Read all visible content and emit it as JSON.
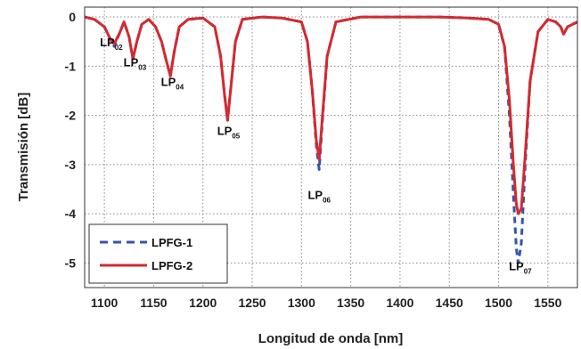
{
  "chart_data": {
    "type": "line",
    "xlabel": "Longitud de onda [nm]",
    "ylabel": "Transmisión [dB]",
    "xlim": [
      1080,
      1580
    ],
    "ylim": [
      -5.5,
      0.2
    ],
    "xticks": [
      1100,
      1150,
      1200,
      1250,
      1300,
      1350,
      1400,
      1450,
      1500,
      1550
    ],
    "yticks": [
      0,
      -1,
      -2,
      -3,
      -4,
      -5
    ],
    "grid": true,
    "legend_position": "bottom-left",
    "series": [
      {
        "name": "LPFG-1",
        "style": "dashed",
        "color": "#3355aa",
        "x": [
          1080,
          1090,
          1100,
          1106,
          1110,
          1116,
          1120,
          1125,
          1129,
          1133,
          1138,
          1145,
          1152,
          1158,
          1163,
          1167,
          1171,
          1176,
          1185,
          1200,
          1212,
          1218,
          1222,
          1225,
          1228,
          1233,
          1240,
          1260,
          1280,
          1300,
          1306,
          1311,
          1315,
          1318,
          1321,
          1326,
          1335,
          1360,
          1400,
          1440,
          1470,
          1490,
          1500,
          1506,
          1511,
          1515,
          1518,
          1520,
          1523,
          1527,
          1532,
          1540,
          1550,
          1558,
          1563,
          1566,
          1570,
          1580
        ],
        "y": [
          0.0,
          -0.05,
          -0.2,
          -0.45,
          -0.6,
          -0.3,
          -0.1,
          -0.4,
          -0.85,
          -0.5,
          -0.15,
          -0.05,
          -0.2,
          -0.5,
          -0.9,
          -1.2,
          -0.7,
          -0.2,
          -0.05,
          -0.02,
          -0.2,
          -0.8,
          -1.6,
          -2.1,
          -1.5,
          -0.5,
          -0.05,
          0.0,
          -0.02,
          -0.1,
          -0.5,
          -1.5,
          -2.6,
          -3.1,
          -2.2,
          -0.8,
          -0.1,
          0.0,
          0.0,
          0.0,
          -0.02,
          -0.05,
          -0.15,
          -0.6,
          -2.0,
          -3.6,
          -4.7,
          -5.0,
          -4.6,
          -3.0,
          -1.3,
          -0.3,
          -0.05,
          -0.1,
          -0.2,
          -0.35,
          -0.2,
          -0.1
        ]
      },
      {
        "name": "LPFG-2",
        "style": "solid",
        "color": "#d42a2f",
        "x": [
          1080,
          1090,
          1100,
          1106,
          1110,
          1116,
          1120,
          1125,
          1129,
          1133,
          1138,
          1145,
          1152,
          1158,
          1163,
          1167,
          1171,
          1176,
          1185,
          1200,
          1212,
          1218,
          1222,
          1225,
          1228,
          1233,
          1240,
          1260,
          1280,
          1300,
          1306,
          1311,
          1315,
          1318,
          1321,
          1326,
          1335,
          1360,
          1400,
          1440,
          1470,
          1490,
          1500,
          1506,
          1511,
          1515,
          1518,
          1520,
          1523,
          1527,
          1532,
          1540,
          1550,
          1558,
          1563,
          1566,
          1570,
          1580
        ],
        "y": [
          0.0,
          -0.05,
          -0.2,
          -0.45,
          -0.55,
          -0.3,
          -0.1,
          -0.4,
          -0.85,
          -0.5,
          -0.15,
          -0.05,
          -0.2,
          -0.5,
          -0.9,
          -1.2,
          -0.7,
          -0.2,
          -0.05,
          -0.02,
          -0.2,
          -0.8,
          -1.6,
          -2.1,
          -1.5,
          -0.5,
          -0.05,
          0.0,
          -0.02,
          -0.1,
          -0.5,
          -1.5,
          -2.5,
          -2.9,
          -2.1,
          -0.8,
          -0.1,
          0.0,
          0.0,
          0.0,
          -0.02,
          -0.05,
          -0.15,
          -0.6,
          -1.7,
          -3.0,
          -3.8,
          -4.0,
          -3.9,
          -2.8,
          -1.3,
          -0.3,
          -0.05,
          -0.1,
          -0.2,
          -0.35,
          -0.2,
          -0.1
        ]
      }
    ],
    "annotations": [
      {
        "main": "LP",
        "sub": "02",
        "x": 1107,
        "y": -0.6
      },
      {
        "main": "LP",
        "sub": "03",
        "x": 1131,
        "y": -1.0
      },
      {
        "main": "LP",
        "sub": "04",
        "x": 1169,
        "y": -1.4
      },
      {
        "main": "LP",
        "sub": "05",
        "x": 1226,
        "y": -2.4
      },
      {
        "main": "LP",
        "sub": "06",
        "x": 1318,
        "y": -3.7
      },
      {
        "main": "LP",
        "sub": "07",
        "x": 1522,
        "y": -5.15
      }
    ]
  }
}
